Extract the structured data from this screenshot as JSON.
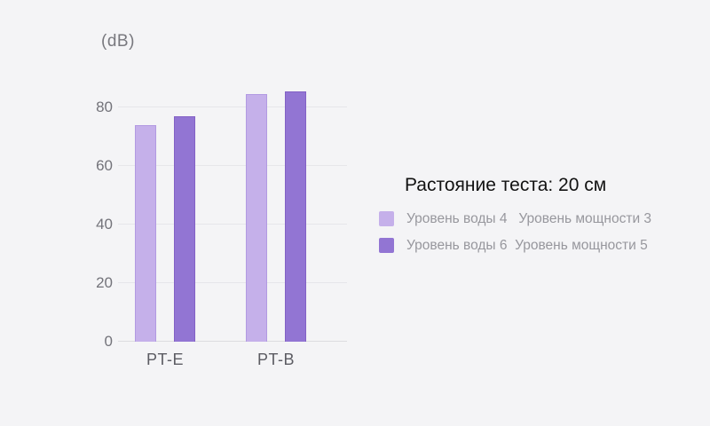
{
  "page": {
    "background_color": "#f4f4f6"
  },
  "chart_data": {
    "type": "bar",
    "title": "Растояние теста: 20 см",
    "xlabel": "",
    "ylabel": "(dB)",
    "categories": [
      "PT-E",
      "PT-B"
    ],
    "series": [
      {
        "name": "Уровень воды 4   Уровень мощности 3",
        "color": "#c5b0ea",
        "border_color": "#b29ae2",
        "values": [
          74,
          84.5
        ]
      },
      {
        "name": "Уровень воды 6  Уровень мощности 5",
        "color": "#9275d3",
        "border_color": "#8362c5",
        "values": [
          77,
          85.5
        ]
      }
    ],
    "yticks": [
      0,
      20,
      40,
      60,
      80
    ],
    "ylim": [
      0,
      86
    ],
    "grid": true,
    "gridline_color": "#e6e6ea",
    "axis_line_color": "#dcdce0",
    "legend_position": "right-center"
  }
}
